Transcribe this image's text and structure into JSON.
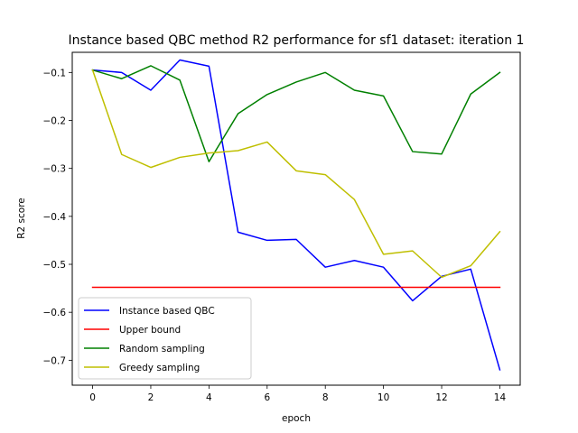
{
  "chart_data": {
    "type": "line",
    "title": "Instance based QBC method R2 performance for sf1 dataset: iteration 1",
    "xlabel": "epoch",
    "ylabel": "R2 score",
    "x": [
      0,
      1,
      2,
      3,
      4,
      5,
      6,
      7,
      8,
      9,
      10,
      11,
      12,
      13,
      14
    ],
    "xlim": [
      -0.7,
      14.7
    ],
    "ylim": [
      -0.752,
      -0.058
    ],
    "xticks": [
      "0",
      "2",
      "4",
      "6",
      "8",
      "10",
      "12",
      "14"
    ],
    "yticks": [
      "−0.1",
      "−0.2",
      "−0.3",
      "−0.4",
      "−0.5",
      "−0.6",
      "−0.7"
    ],
    "grid": false,
    "legend_position": "lower-left",
    "series": [
      {
        "name": "Instance based QBC",
        "color": "#0000ff",
        "values": [
          -0.095,
          -0.1,
          -0.137,
          -0.074,
          -0.087,
          -0.433,
          -0.45,
          -0.448,
          -0.506,
          -0.492,
          -0.506,
          -0.576,
          -0.525,
          -0.51,
          -0.72
        ]
      },
      {
        "name": "Upper bound",
        "color": "#ff0000",
        "values": [
          -0.548,
          -0.548,
          -0.548,
          -0.548,
          -0.548,
          -0.548,
          -0.548,
          -0.548,
          -0.548,
          -0.548,
          -0.548,
          -0.548,
          -0.548,
          -0.548,
          -0.548
        ]
      },
      {
        "name": "Random sampling",
        "color": "#008000",
        "values": [
          -0.095,
          -0.113,
          -0.086,
          -0.116,
          -0.286,
          -0.186,
          -0.146,
          -0.12,
          -0.1,
          -0.137,
          -0.149,
          -0.265,
          -0.27,
          -0.145,
          -0.1
        ]
      },
      {
        "name": "Greedy sampling",
        "color": "#bfbf00",
        "values": [
          -0.095,
          -0.271,
          -0.298,
          -0.277,
          -0.268,
          -0.263,
          -0.245,
          -0.305,
          -0.313,
          -0.365,
          -0.479,
          -0.472,
          -0.527,
          -0.503,
          -0.432
        ]
      }
    ]
  }
}
